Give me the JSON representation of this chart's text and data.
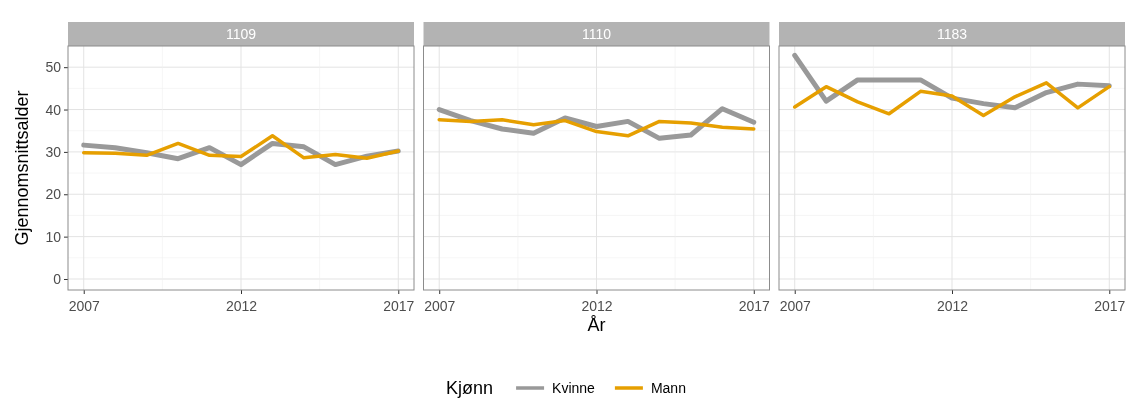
{
  "chart_data": [
    {
      "type": "line",
      "title": "1109",
      "ylabel": "Gjennomsnittsalder",
      "x": [
        2007,
        2008,
        2009,
        2010,
        2011,
        2012,
        2013,
        2014,
        2015,
        2016,
        2017
      ],
      "xlim": [
        2006.5,
        2017.5
      ],
      "xticks": [
        2007,
        2012,
        2017
      ],
      "ylim": [
        -2.6,
        55
      ],
      "yticks": [
        0,
        10,
        20,
        30,
        40,
        50
      ],
      "grid": true,
      "legend": false,
      "series": [
        {
          "color": "#999999",
          "values": [
            31.6,
            31,
            29.8,
            28.4,
            31,
            27,
            32,
            31.2,
            27,
            29,
            30.2
          ]
        },
        {
          "color": "#e69f00",
          "values": [
            29.8,
            29.7,
            29.2,
            32,
            29.2,
            28.9,
            33.8,
            28.6,
            29.4,
            28.5,
            30.2
          ]
        }
      ]
    },
    {
      "type": "line",
      "title": "1110",
      "xlabel": "År",
      "legend_title": "Kjønn",
      "x": [
        2007,
        2008,
        2009,
        2010,
        2011,
        2012,
        2013,
        2014,
        2015,
        2016,
        2017
      ],
      "xlim": [
        2006.5,
        2017.5
      ],
      "xticks": [
        2007,
        2012,
        2017
      ],
      "ylim": [
        -2.6,
        55
      ],
      "yticks": [
        0,
        10,
        20,
        30,
        40,
        50
      ],
      "grid": true,
      "legend": "bottom",
      "tick_labels": "x",
      "series": [
        {
          "name": "Kvinne",
          "color": "#999999",
          "values": [
            40,
            37.4,
            35.4,
            34.4,
            38,
            36,
            37.2,
            33.2,
            34,
            40.2,
            37
          ]
        },
        {
          "name": "Mann",
          "color": "#e69f00",
          "values": [
            37.6,
            37.2,
            37.6,
            36.4,
            37.4,
            34.8,
            33.8,
            37.2,
            36.8,
            35.8,
            35.4
          ]
        }
      ]
    },
    {
      "type": "line",
      "title": "1183",
      "x": [
        2007,
        2008,
        2009,
        2010,
        2011,
        2012,
        2013,
        2014,
        2015,
        2016,
        2017
      ],
      "xlim": [
        2006.5,
        2017.5
      ],
      "xticks": [
        2007,
        2012,
        2017
      ],
      "ylim": [
        -2.6,
        55
      ],
      "yticks": [
        0,
        10,
        20,
        30,
        40,
        50
      ],
      "grid": true,
      "legend": false,
      "tick_labels": "x",
      "series": [
        {
          "color": "#999999",
          "values": [
            52.8,
            42,
            47,
            47,
            47,
            42.7,
            41.4,
            40.4,
            44,
            46,
            45.6
          ]
        },
        {
          "color": "#e69f00",
          "values": [
            40.6,
            45.4,
            41.8,
            39,
            44.3,
            43.2,
            38.6,
            43,
            46.3,
            40.4,
            45.4
          ]
        }
      ]
    }
  ]
}
